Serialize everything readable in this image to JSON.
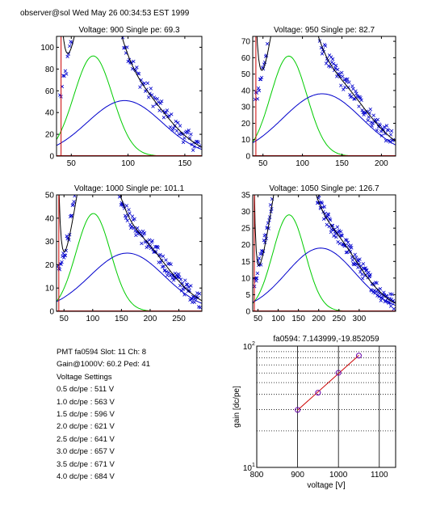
{
  "header": {
    "text": "observer@sol  Wed May 26 00:34:53 EST 1999"
  },
  "info": {
    "pmt_line": "PMT fa0594 Slot: 11 Ch: 8",
    "gain_line": "Gain@1000V: 60.2 Ped: 41",
    "settings_title": "Voltage Settings",
    "settings": [
      "0.5 dc/pe : 511 V",
      "1.0 dc/pe : 563 V",
      "1.5 dc/pe : 596 V",
      "2.0 dc/pe : 621 V",
      "2.5 dc/pe : 641 V",
      "3.0 dc/pe : 657 V",
      "3.5 dc/pe : 671 V",
      "4.0 dc/pe : 684 V"
    ]
  },
  "colors": {
    "points": "#0000cc",
    "gaussian": "#00cc00",
    "background": "#0000cc",
    "total": "#000000",
    "pedestal": "#cc0000",
    "gain_line": "#cc0000",
    "gain_marker": "#6600aa"
  },
  "chart_data": [
    {
      "type": "scatter",
      "title": "Voltage: 900 Single pe: 69.3",
      "xlim": [
        37,
        165
      ],
      "ylim": [
        0,
        110
      ],
      "xticks": [
        50,
        100,
        150
      ],
      "yticks": [
        0,
        20,
        40,
        60,
        80,
        100
      ],
      "single_pe": 69.3,
      "scatter": {
        "x_min": 40,
        "x_max": 163,
        "n": 130
      },
      "pedestal": {
        "x": 41
      },
      "gaussian": {
        "amp": 92,
        "mean": 69.3,
        "sigma": 17
      },
      "background": {
        "amp": 51,
        "mean": 97,
        "sigma": 33
      },
      "series": [
        {
          "name": "data",
          "style": "x-markers"
        },
        {
          "name": "single pe",
          "style": "line"
        },
        {
          "name": "background",
          "style": "line"
        },
        {
          "name": "total",
          "style": "line"
        },
        {
          "name": "pedestal",
          "style": "line"
        }
      ]
    },
    {
      "type": "scatter",
      "title": "Voltage: 950 Single pe: 82.7",
      "xlim": [
        37,
        218
      ],
      "ylim": [
        0,
        73
      ],
      "xticks": [
        50,
        100,
        150,
        200
      ],
      "yticks": [
        0,
        10,
        20,
        30,
        40,
        50,
        60,
        70
      ],
      "single_pe": 82.7,
      "scatter": {
        "x_min": 40,
        "x_max": 215,
        "n": 170
      },
      "pedestal": {
        "x": 41
      },
      "gaussian": {
        "amp": 61,
        "mean": 82.7,
        "sigma": 23
      },
      "background": {
        "amp": 38,
        "mean": 125,
        "sigma": 50
      },
      "series": [
        {
          "name": "data",
          "style": "x-markers"
        },
        {
          "name": "single pe",
          "style": "line"
        },
        {
          "name": "background",
          "style": "line"
        },
        {
          "name": "total",
          "style": "line"
        },
        {
          "name": "pedestal",
          "style": "line"
        }
      ]
    },
    {
      "type": "scatter",
      "title": "Voltage: 1000 Single pe: 101.1",
      "xlim": [
        37,
        290
      ],
      "ylim": [
        0,
        50
      ],
      "xticks": [
        50,
        100,
        150,
        200,
        250
      ],
      "yticks": [
        0,
        10,
        20,
        30,
        40,
        50
      ],
      "single_pe": 101.1,
      "scatter": {
        "x_min": 40,
        "x_max": 287,
        "n": 200
      },
      "pedestal": {
        "x": 41
      },
      "gaussian": {
        "amp": 42,
        "mean": 101.1,
        "sigma": 30
      },
      "background": {
        "amp": 25,
        "mean": 160,
        "sigma": 65
      },
      "series": [
        {
          "name": "data",
          "style": "x-markers"
        },
        {
          "name": "single pe",
          "style": "line"
        },
        {
          "name": "background",
          "style": "line"
        },
        {
          "name": "total",
          "style": "line"
        },
        {
          "name": "pedestal",
          "style": "line"
        }
      ]
    },
    {
      "type": "scatter",
      "title": "Voltage: 1050 Single pe: 126.7",
      "xlim": [
        37,
        390
      ],
      "ylim": [
        0,
        35
      ],
      "xticks": [
        50,
        100,
        150,
        200,
        250,
        300
      ],
      "yticks": [
        0,
        5,
        10,
        15,
        20,
        25,
        30,
        35
      ],
      "single_pe": 126.7,
      "scatter": {
        "x_min": 40,
        "x_max": 387,
        "n": 240
      },
      "pedestal": {
        "x": 41
      },
      "gaussian": {
        "amp": 29,
        "mean": 126.7,
        "sigma": 40
      },
      "background": {
        "amp": 19,
        "mean": 205,
        "sigma": 85
      },
      "series": [
        {
          "name": "data",
          "style": "x-markers"
        },
        {
          "name": "single pe",
          "style": "line"
        },
        {
          "name": "background",
          "style": "line"
        },
        {
          "name": "total",
          "style": "line"
        },
        {
          "name": "pedestal",
          "style": "line"
        }
      ]
    },
    {
      "type": "line",
      "title": "fa0594: 7.143999,-19.852059",
      "xlabel": "voltage [V]",
      "ylabel": "gain [dc/pe]",
      "xlim": [
        800,
        1140
      ],
      "ylim": [
        10,
        100
      ],
      "yscale": "log",
      "xticks": [
        800,
        900,
        1000,
        1100
      ],
      "yticks": [
        {
          "value": 10,
          "label": "10",
          "sup": "1"
        },
        {
          "value": 100,
          "label": "10",
          "sup": "2"
        }
      ],
      "grid": "dotted horizontal at 20..90, solid vertical at 900, 1000, 1100",
      "series": [
        {
          "name": "measured",
          "x": [
            900,
            950,
            1000,
            1050
          ],
          "y": [
            29.8,
            41.3,
            60.2,
            83.5
          ]
        }
      ],
      "fit": {
        "slope": 7.143999,
        "intercept": -19.852059,
        "x_range": [
          900,
          1050
        ]
      }
    }
  ]
}
